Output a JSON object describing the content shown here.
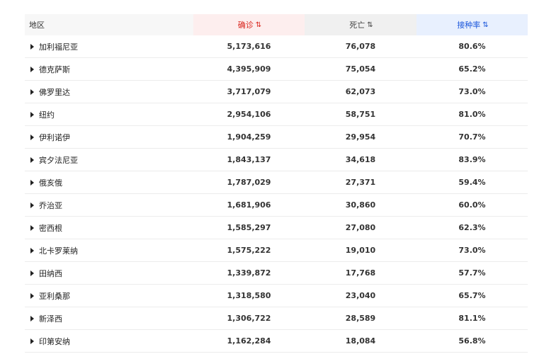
{
  "header": {
    "region": "地区",
    "confirmed": "确诊",
    "deaths": "死亡",
    "vaccination": "接种率",
    "sort_glyph": "⇅"
  },
  "rows": [
    {
      "region": "加利福尼亚",
      "confirmed": "5,173,616",
      "deaths": "76,078",
      "rate": "80.6%"
    },
    {
      "region": "德克萨斯",
      "confirmed": "4,395,909",
      "deaths": "75,054",
      "rate": "65.2%"
    },
    {
      "region": "佛罗里达",
      "confirmed": "3,717,079",
      "deaths": "62,073",
      "rate": "73.0%"
    },
    {
      "region": "纽约",
      "confirmed": "2,954,106",
      "deaths": "58,751",
      "rate": "81.0%"
    },
    {
      "region": "伊利诺伊",
      "confirmed": "1,904,259",
      "deaths": "29,954",
      "rate": "70.7%"
    },
    {
      "region": "宾夕法尼亚",
      "confirmed": "1,843,137",
      "deaths": "34,618",
      "rate": "83.9%"
    },
    {
      "region": "俄亥俄",
      "confirmed": "1,787,029",
      "deaths": "27,371",
      "rate": "59.4%"
    },
    {
      "region": "乔治亚",
      "confirmed": "1,681,906",
      "deaths": "30,860",
      "rate": "60.0%"
    },
    {
      "region": "密西根",
      "confirmed": "1,585,297",
      "deaths": "27,080",
      "rate": "62.3%"
    },
    {
      "region": "北卡罗莱纳",
      "confirmed": "1,575,222",
      "deaths": "19,010",
      "rate": "73.0%"
    },
    {
      "region": "田纳西",
      "confirmed": "1,339,872",
      "deaths": "17,768",
      "rate": "57.7%"
    },
    {
      "region": "亚利桑那",
      "confirmed": "1,318,580",
      "deaths": "23,040",
      "rate": "65.7%"
    },
    {
      "region": "新泽西",
      "confirmed": "1,306,722",
      "deaths": "28,589",
      "rate": "81.1%"
    },
    {
      "region": "印第安纳",
      "confirmed": "1,162,284",
      "deaths": "18,084",
      "rate": "56.8%"
    }
  ],
  "colors": {
    "confirmed_accent": "#d9251d",
    "vaccination_accent": "#1a56db"
  }
}
